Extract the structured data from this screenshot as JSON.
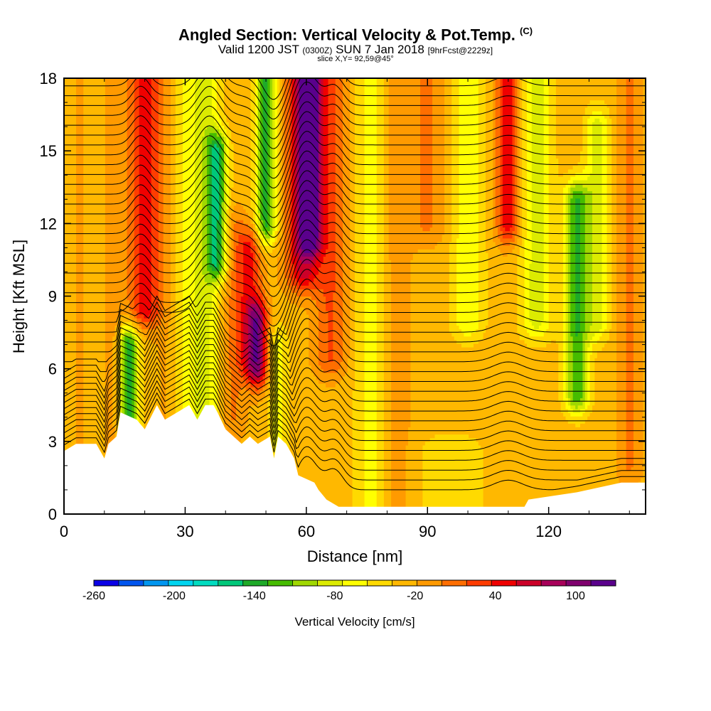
{
  "header": {
    "title_main": "Angled Section: Vertical Velocity & Pot.Temp.",
    "title_unit": "(C)",
    "valid_prefix": "Valid 1200 JST",
    "valid_utc": "(0300Z)",
    "valid_date": "SUN 7 Jan 2018",
    "forecast": "[9hrFcst@2229z]",
    "slice": "slice X,Y= 92,59@45°"
  },
  "chart_data": {
    "type": "heatmap",
    "xlabel": "Distance [nm]",
    "ylabel": "Height [Kft MSL]",
    "xlim": [
      0,
      144
    ],
    "ylim": [
      0,
      18
    ],
    "x_ticks": [
      "0",
      "30",
      "60",
      "90",
      "120"
    ],
    "x_tick_values": [
      0,
      30,
      60,
      90,
      120
    ],
    "y_ticks": [
      "0",
      "3",
      "6",
      "9",
      "12",
      "15",
      "18"
    ],
    "y_tick_values": [
      0,
      3,
      6,
      9,
      12,
      15,
      18
    ],
    "colorbar": {
      "label": "Vertical Velocity [cm/s]",
      "tick_labels": [
        "-260",
        "-200",
        "-140",
        "-80",
        "-20",
        "40",
        "100"
      ],
      "tick_values": [
        -260,
        -200,
        -140,
        -80,
        -20,
        40,
        100
      ],
      "range": [
        -260,
        130
      ],
      "bin_width": 20,
      "colors": [
        "#0a00e6",
        "#0055ee",
        "#0096f0",
        "#00d5f0",
        "#00dcc0",
        "#00c87a",
        "#1eaa28",
        "#46bc00",
        "#a0d800",
        "#dceb00",
        "#ffff00",
        "#ffda00",
        "#ffb800",
        "#ff9a00",
        "#ff6e00",
        "#ff3c00",
        "#f00000",
        "#cc0028",
        "#a8005a",
        "#80006e",
        "#5a008c"
      ]
    },
    "terrain_kft": [
      [
        0,
        2.6
      ],
      [
        3,
        2.9
      ],
      [
        8,
        2.9
      ],
      [
        9,
        2.6
      ],
      [
        10,
        2.3
      ],
      [
        11,
        2.9
      ],
      [
        13,
        3.2
      ],
      [
        14,
        4.2
      ],
      [
        18,
        3.9
      ],
      [
        20,
        3.5
      ],
      [
        23,
        4.5
      ],
      [
        25,
        3.9
      ],
      [
        28,
        4.2
      ],
      [
        31,
        4.5
      ],
      [
        33,
        3.9
      ],
      [
        35,
        4.5
      ],
      [
        37,
        4.5
      ],
      [
        38,
        4.2
      ],
      [
        40,
        3.5
      ],
      [
        42,
        3.2
      ],
      [
        44,
        2.9
      ],
      [
        46,
        3.2
      ],
      [
        48,
        2.9
      ],
      [
        51,
        3.2
      ],
      [
        52,
        2.3
      ],
      [
        53,
        3.2
      ],
      [
        55,
        2.9
      ],
      [
        57,
        2.3
      ],
      [
        58,
        1.6
      ],
      [
        62,
        1.3
      ],
      [
        63,
        1.0
      ],
      [
        65,
        0.6
      ],
      [
        68,
        0.3
      ],
      [
        90,
        0.3
      ],
      [
        114,
        0.3
      ],
      [
        115,
        0.6
      ],
      [
        127,
        0.9
      ],
      [
        138,
        1.3
      ],
      [
        144,
        1.3
      ]
    ],
    "series": [
      {
        "name": "Vertical Velocity",
        "units": "cm/s",
        "features": [
          {
            "x": 4,
            "y0": 1.0,
            "y1": 18,
            "w": 2.5,
            "v": 10
          },
          {
            "x": 8,
            "y0": 1.2,
            "y1": 18,
            "w": 3,
            "v": -5
          },
          {
            "x": 12,
            "y0": 2.5,
            "y1": 18,
            "w": 2.5,
            "v": 20
          },
          {
            "x": 16,
            "y0": 4.0,
            "y1": 7.0,
            "w": 2.5,
            "v": -120
          },
          {
            "x": 20,
            "y0": 8.5,
            "y1": 18,
            "w": 4,
            "v": 80
          },
          {
            "x": 25,
            "y0": 4.0,
            "y1": 18,
            "w": 3,
            "v": 10
          },
          {
            "x": 30,
            "y0": 4.0,
            "y1": 18,
            "w": 3,
            "v": -30
          },
          {
            "x": 35,
            "y0": 4.0,
            "y1": 18,
            "w": 3.5,
            "v": -60
          },
          {
            "x": 38,
            "y0": 10.5,
            "y1": 15.0,
            "w": 2.5,
            "v": -110
          },
          {
            "x": 42,
            "y0": 4.0,
            "y1": 12.0,
            "w": 3,
            "v": 30
          },
          {
            "x": 46,
            "y0": 6.5,
            "y1": 11.0,
            "w": 3,
            "v": 70
          },
          {
            "x": 48,
            "y0": 6.0,
            "y1": 8.0,
            "w": 2.5,
            "v": 100
          },
          {
            "x": 50,
            "y0": 12.0,
            "y1": 18,
            "w": 2.5,
            "v": -120
          },
          {
            "x": 53,
            "y0": 3.0,
            "y1": 7.0,
            "w": 2.5,
            "v": -40
          },
          {
            "x": 59,
            "y0": 10.0,
            "y1": 18,
            "w": 4,
            "v": 90
          },
          {
            "x": 61,
            "y0": 11.5,
            "y1": 18,
            "w": 3,
            "v": 120
          },
          {
            "x": 66,
            "y0": 6.5,
            "y1": 18,
            "w": 4,
            "v": 50
          },
          {
            "x": 76,
            "y0": 0.5,
            "y1": 18,
            "w": 4,
            "v": -40
          },
          {
            "x": 82,
            "y0": 0.5,
            "y1": 18,
            "w": 4,
            "v": 20
          },
          {
            "x": 90,
            "y0": 12.0,
            "y1": 18,
            "w": 5,
            "v": 30
          },
          {
            "x": 100,
            "y0": 8.0,
            "y1": 18,
            "w": 4,
            "v": -50
          },
          {
            "x": 110,
            "y0": 12.0,
            "y1": 18,
            "w": 3,
            "v": 80
          },
          {
            "x": 117,
            "y0": 8.0,
            "y1": 18,
            "w": 4,
            "v": -60
          },
          {
            "x": 127,
            "y0": 5.0,
            "y1": 13.0,
            "w": 3,
            "v": -110
          },
          {
            "x": 132,
            "y0": 8.0,
            "y1": 16.0,
            "w": 3,
            "v": -60
          },
          {
            "x": 140,
            "y0": 2.0,
            "y1": 18,
            "w": 3,
            "v": 30
          },
          {
            "x": 96,
            "y0": 0.3,
            "y1": 2.5,
            "w": 8,
            "v": -30
          }
        ]
      },
      {
        "name": "Pot.Temp.",
        "units": "C",
        "interval": 2,
        "lowest_level_kft": 1.0,
        "top_level_kft": 18.5,
        "levels": 44,
        "distortions": [
          {
            "x": 19,
            "amp_kft": 0.8,
            "w": 3
          },
          {
            "x": 36,
            "amp_kft": 1.2,
            "w": 4
          },
          {
            "x": 52,
            "amp_kft": -1.4,
            "w": 4
          },
          {
            "x": 60,
            "amp_kft": 1.4,
            "w": 4
          },
          {
            "x": 67,
            "amp_kft": 0.8,
            "w": 3
          },
          {
            "x": 110,
            "amp_kft": 0.4,
            "w": 5
          }
        ]
      }
    ]
  }
}
